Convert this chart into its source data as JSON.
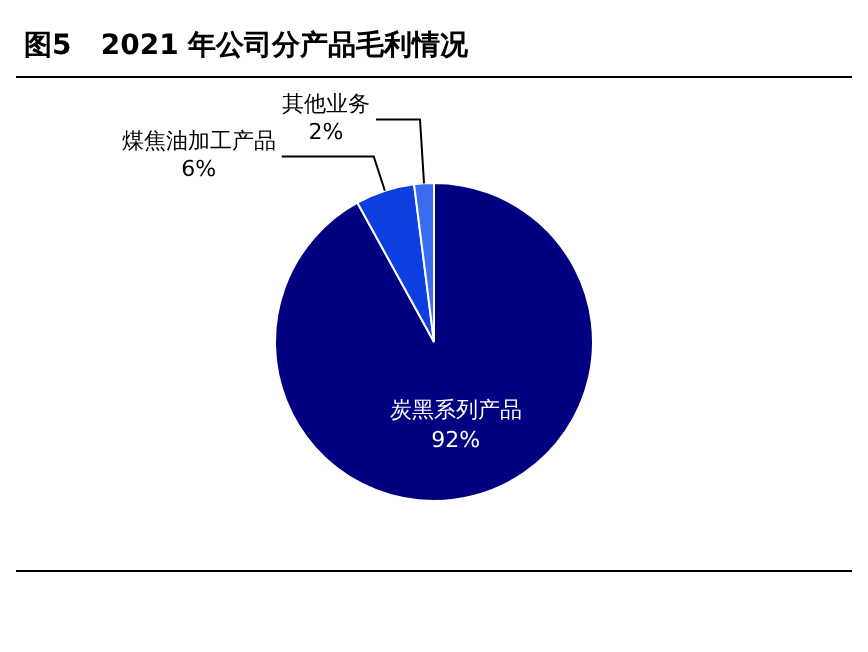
{
  "chart_data": {
    "type": "pie",
    "title": "图5   2021 年公司分产品毛利情况",
    "categories": [
      "炭黑系列产品",
      "煤焦油加工产品",
      "其他业务"
    ],
    "values": [
      92,
      6,
      2
    ],
    "colors": [
      "#000080",
      "#0c3ee0",
      "#3a6cf0"
    ],
    "value_labels": [
      "92%",
      "6%",
      "2%"
    ],
    "legend": false
  }
}
